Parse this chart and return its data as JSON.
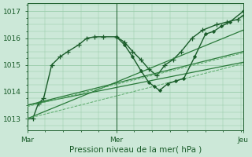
{
  "bg_color": "#cce8d8",
  "plot_bg_color": "#cce8d8",
  "grid_color": "#99ccaa",
  "dark_green": "#1a5c2a",
  "mid_green": "#2a7a3a",
  "light_green": "#5aaa6a",
  "ylim": [
    1012.55,
    1017.3
  ],
  "yticks": [
    1013,
    1014,
    1015,
    1016,
    1017
  ],
  "xlabel": "Pression niveau de la mer( hPa )",
  "fontsize_ticks": 6.5,
  "fontsize_xlabel": 7.5,
  "series": [
    {
      "x": [
        0,
        2,
        4,
        6,
        9,
        12,
        15,
        19,
        22,
        25,
        28,
        33,
        36,
        39,
        42,
        45,
        48,
        51,
        54,
        57,
        61,
        65,
        70,
        74,
        78,
        80
      ],
      "y": [
        1013.0,
        1013.0,
        1013.55,
        1013.75,
        1015.0,
        1015.3,
        1015.5,
        1015.75,
        1016.0,
        1016.05,
        1016.05,
        1016.05,
        1015.85,
        1015.5,
        1015.2,
        1014.85,
        1014.6,
        1015.0,
        1015.2,
        1015.5,
        1016.0,
        1016.3,
        1016.5,
        1016.6,
        1016.7,
        1016.85
      ],
      "style": "-",
      "marker": "+",
      "color": "#1a5c2a",
      "lw": 1.0,
      "ms": 4,
      "mew": 0.9
    },
    {
      "x": [
        0,
        80
      ],
      "y": [
        1013.0,
        1016.3
      ],
      "style": "-",
      "marker": "",
      "color": "#2a7a3a",
      "lw": 0.9,
      "ms": 0,
      "mew": 0
    },
    {
      "x": [
        0,
        80
      ],
      "y": [
        1013.5,
        1015.5
      ],
      "style": "-",
      "marker": "",
      "color": "#2a7a3a",
      "lw": 0.9,
      "ms": 0,
      "mew": 0
    },
    {
      "x": [
        0,
        80
      ],
      "y": [
        1013.5,
        1015.1
      ],
      "style": "-",
      "marker": "",
      "color": "#2a7a3a",
      "lw": 0.9,
      "ms": 0,
      "mew": 0
    },
    {
      "x": [
        0,
        80
      ],
      "y": [
        1013.0,
        1015.05
      ],
      "style": "--",
      "marker": "",
      "color": "#5aaa6a",
      "lw": 0.7,
      "ms": 0,
      "mew": 0
    },
    {
      "x": [
        0,
        80
      ],
      "y": [
        1013.45,
        1015.45
      ],
      "style": "--",
      "marker": "",
      "color": "#5aaa6a",
      "lw": 0.7,
      "ms": 0,
      "mew": 0
    },
    {
      "x": [
        33,
        36,
        39,
        42,
        45,
        47,
        49,
        52,
        55,
        58,
        62,
        66,
        69,
        72,
        75,
        80
      ],
      "y": [
        1016.05,
        1015.75,
        1015.3,
        1014.8,
        1014.35,
        1014.2,
        1014.05,
        1014.3,
        1014.4,
        1014.5,
        1015.3,
        1016.15,
        1016.25,
        1016.45,
        1016.6,
        1017.0
      ],
      "style": "-",
      "marker": "D",
      "color": "#1a5c2a",
      "lw": 1.0,
      "ms": 2.2,
      "mew": 0.5
    }
  ],
  "vlines_x": [
    0,
    33,
    80
  ],
  "xtick_positions": [
    0,
    33,
    80
  ],
  "xtick_labels": [
    "Mar",
    "Mer",
    "Jeu"
  ],
  "xminor_count": 32,
  "yminor_count": 4
}
